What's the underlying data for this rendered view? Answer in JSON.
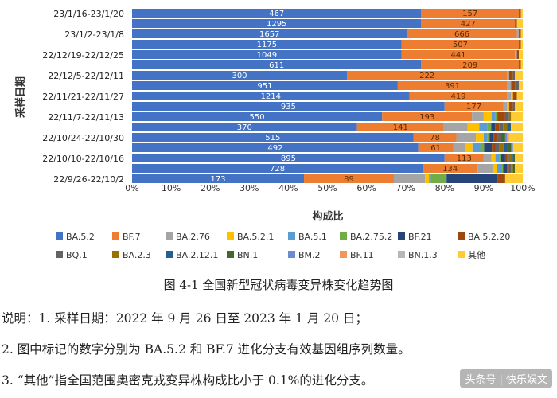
{
  "chart_data": {
    "type": "bar",
    "orientation": "horizontal",
    "stacked": true,
    "xlabel": "构成比",
    "ylabel": "采样日期",
    "xlim": [
      0,
      100
    ],
    "xticks": [
      "0%",
      "10%",
      "20%",
      "30%",
      "40%",
      "50%",
      "60%",
      "70%",
      "80%",
      "90%",
      "100%"
    ],
    "categories": [
      "23/1/16-23/1/20",
      "",
      "23/1/2-23/1/8",
      "",
      "22/12/19-22/12/25",
      "",
      "22/12/5-22/12/11",
      "",
      "22/11/21-22/11/27",
      "",
      "22/11/7-22/11/13",
      "",
      "22/10/24-22/10/30",
      "",
      "22/10/10-22/10/16",
      "",
      "22/9/26-22/10/2"
    ],
    "ba52_counts": [
      "467",
      "1295",
      "1657",
      "1175",
      "1049",
      "611",
      "300",
      "951",
      "1214",
      "935",
      "550",
      "370",
      "515",
      "492",
      "895",
      "728",
      "173"
    ],
    "bf7_counts": [
      "157",
      "427",
      "666",
      "507",
      "441",
      "209",
      "222",
      "391",
      "419",
      "177",
      "193",
      "141",
      "78",
      "61",
      "113",
      "134",
      "89"
    ],
    "legend": [
      "BA.5.2",
      "BF.7",
      "BA.2.76",
      "BA.5.2.1",
      "BA.5.1",
      "BA.2.75.2",
      "BF.21",
      "BA.5.2.20",
      "BQ.1",
      "BA.2.3",
      "BA.2.12.1",
      "BN.1",
      "BM.2",
      "BF.11",
      "BN.1.3",
      "其他"
    ],
    "colors": [
      "#4472c4",
      "#ed7d31",
      "#a5a5a5",
      "#ffc000",
      "#5b9bd5",
      "#70ad47",
      "#264478",
      "#9e480e",
      "#636363",
      "#997300",
      "#255e91",
      "#43682b",
      "#698ed0",
      "#f1975a",
      "#b7b7b7",
      "#ffcd33"
    ],
    "series": [
      {
        "name": "BA.5.2",
        "values": [
          74,
          74,
          70,
          69,
          69,
          74,
          55,
          68,
          71,
          80,
          64,
          57,
          72,
          74,
          80,
          74,
          44
        ]
      },
      {
        "name": "BF.7",
        "values": [
          25,
          24,
          28,
          30,
          29,
          25,
          41,
          28,
          25,
          15,
          23,
          22,
          11,
          9,
          10,
          14,
          23
        ]
      },
      {
        "name": "BA.2.76",
        "values": [
          0,
          0,
          0.5,
          0,
          0.5,
          0,
          0.5,
          1,
          1,
          1,
          3,
          6,
          5,
          3,
          2,
          4,
          8
        ]
      },
      {
        "name": "BA.5.2.1",
        "values": [
          0,
          0,
          0,
          0,
          0,
          0,
          0,
          0,
          0.5,
          0.5,
          2,
          3,
          2,
          2,
          1,
          1,
          1
        ]
      },
      {
        "name": "BA.5.1",
        "values": [
          0,
          0,
          0,
          0,
          0,
          0,
          0,
          0,
          0,
          0,
          1,
          2,
          1,
          2,
          1,
          1,
          0.5
        ]
      },
      {
        "name": "BA.2.75.2",
        "values": [
          0,
          0,
          0,
          0,
          0,
          0,
          0,
          0,
          0,
          0,
          0.5,
          1,
          0.5,
          1,
          0.5,
          0.5,
          4
        ]
      },
      {
        "name": "BF.21",
        "values": [
          0,
          0,
          0,
          0,
          0,
          0,
          0,
          0,
          0,
          0,
          0,
          1,
          1,
          2,
          1,
          1,
          13
        ]
      },
      {
        "name": "BA.5.2.20",
        "values": [
          0.5,
          0.5,
          0.5,
          0.5,
          0.5,
          0.5,
          1,
          1,
          1,
          1,
          2,
          1,
          1,
          1,
          0.5,
          0.5,
          2
        ]
      },
      {
        "name": "BQ.1",
        "values": [
          0,
          0,
          0,
          0,
          0,
          0,
          0.5,
          1,
          0,
          0.5,
          1,
          1,
          1,
          1,
          0.5,
          0.5,
          0
        ]
      },
      {
        "name": "BA.2.3",
        "values": [
          0,
          0,
          0,
          0,
          0,
          0,
          0,
          0,
          0,
          0,
          0.5,
          1,
          0,
          1,
          0.5,
          0.5,
          0
        ]
      },
      {
        "name": "BA.2.12.1",
        "values": [
          0,
          0,
          0,
          0,
          0,
          0,
          0,
          0,
          0,
          0,
          0,
          1,
          0,
          1,
          0.5,
          0,
          0
        ]
      },
      {
        "name": "BN.1",
        "values": [
          0,
          0,
          0,
          0,
          0,
          0,
          0,
          0,
          0,
          0,
          0,
          0,
          1,
          1,
          0.5,
          0.5,
          0
        ]
      },
      {
        "name": "BM.2",
        "values": [
          0,
          0,
          0,
          0,
          0,
          0,
          0,
          0,
          0,
          0,
          0,
          0,
          0.5,
          0.5,
          0,
          0,
          0
        ]
      },
      {
        "name": "BF.11",
        "values": [
          0,
          0,
          0,
          0,
          0,
          0,
          0,
          0,
          0,
          0,
          0,
          0,
          0.5,
          0,
          0,
          0,
          0
        ]
      },
      {
        "name": "BN.1.3",
        "values": [
          0,
          0,
          0,
          0,
          0,
          0,
          0,
          0,
          0,
          0,
          0,
          0,
          0,
          0,
          0,
          0,
          0
        ]
      },
      {
        "name": "其他",
        "values": [
          0.5,
          1.5,
          0.5,
          0.5,
          1,
          0.5,
          2,
          1,
          1.5,
          2,
          3,
          3,
          3.5,
          2.5,
          2,
          2,
          4.5
        ]
      }
    ]
  },
  "caption": "图 4-1  全国新型冠状病毒变异株变化趋势图",
  "notes": [
    "说明：1. 采样日期：2022 年 9 月 26 日至 2023 年 1 月 20 日；",
    "2. 图中标记的数字分别为 BA.5.2 和 BF.7 进化分支有效基因组序列数量。",
    "3. “其他”指全国范围奥密克戎变异株构成比小于 0.1%的进化分支。"
  ],
  "watermark": "头条号 | 快乐娱文"
}
